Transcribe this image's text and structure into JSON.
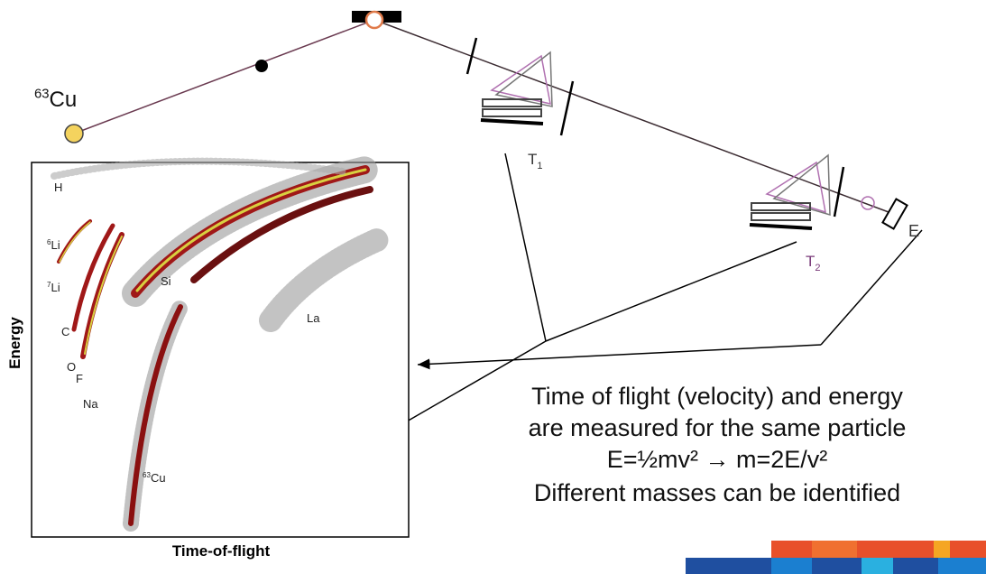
{
  "diagram": {
    "source": {
      "sup": "63",
      "text": "Cu"
    },
    "detectors": [
      {
        "text": "T",
        "sub": "1"
      },
      {
        "text": "T",
        "sub": "2"
      }
    ],
    "energy_detector": "E",
    "plot": {
      "y_label": "Energy",
      "x_label": "Time-of-flight",
      "labels": [
        {
          "text": "H"
        },
        {
          "sup": "6",
          "text": "Li"
        },
        {
          "sup": "7",
          "text": "Li"
        },
        {
          "text": "C"
        },
        {
          "text": "O"
        },
        {
          "text": "F"
        },
        {
          "text": "Na"
        },
        {
          "text": "Si"
        },
        {
          "text": "La"
        },
        {
          "sup": "63",
          "text": "Cu"
        }
      ]
    },
    "caption": [
      "Time of flight (velocity) and energy",
      "are measured for the same particle",
      "E=½mv² → m=2E/v²",
      "Different masses can be identified"
    ]
  }
}
